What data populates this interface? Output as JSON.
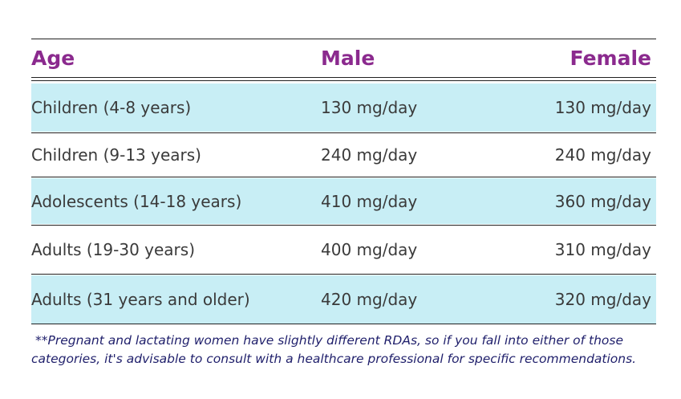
{
  "table": {
    "header": [
      "Age",
      "Male",
      "Female"
    ],
    "rows": [
      [
        "Children (4-8 years)",
        "130 mg/day",
        "130 mg/day"
      ],
      [
        "Children (9-13 years)",
        "240 mg/day",
        "240 mg/day"
      ],
      [
        "Adolescents (14-18 years)",
        "410 mg/day",
        "360 mg/day"
      ],
      [
        "Adults (19-30 years)",
        "400 mg/day",
        "310 mg/day"
      ],
      [
        "Adults (31 years and older)",
        "420 mg/day",
        "320 mg/day"
      ]
    ]
  },
  "footnote": {
    "lines": [
      "**Pregnant and lactating women have slightly different RDAs, so if you fall into either of those",
      "categories, it's advisable to consult with a healthcare professional for specific recommendations."
    ]
  }
}
